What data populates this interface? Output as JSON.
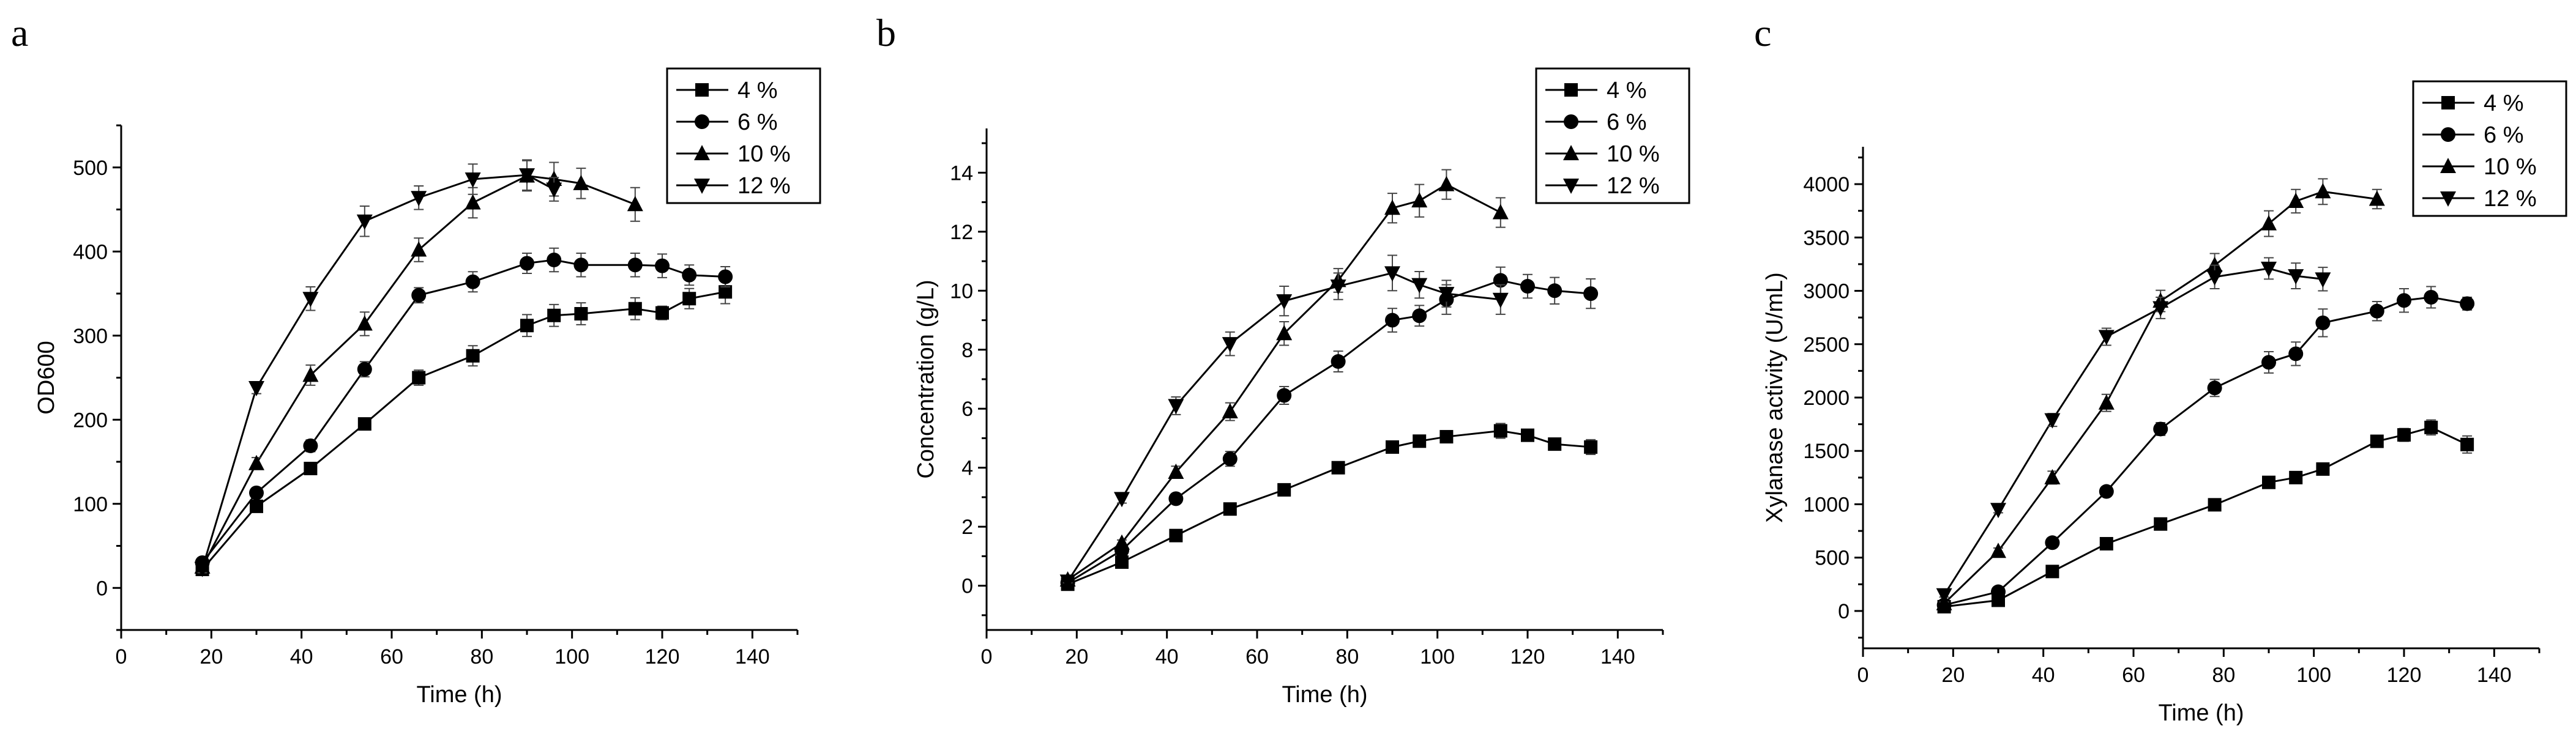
{
  "chart_data": [
    {
      "panel": "a",
      "type": "line",
      "xlabel": "Time (h)",
      "ylabel": "OD600",
      "xlim": [
        0,
        150
      ],
      "ylim": [
        -50,
        550
      ],
      "xticks": [
        0,
        20,
        40,
        60,
        80,
        100,
        120,
        140
      ],
      "yticks": [
        0,
        100,
        200,
        300,
        400,
        500
      ],
      "legend_position": "top-right",
      "series": [
        {
          "name": "4 %",
          "marker": "square",
          "x": [
            18,
            30,
            42,
            54,
            66,
            78,
            90,
            96,
            102,
            114,
            120,
            126,
            134
          ],
          "y": [
            22,
            97,
            142,
            195,
            250,
            276,
            312,
            324,
            326,
            332,
            327,
            344,
            352
          ],
          "err": [
            6,
            6,
            7,
            7,
            9,
            12,
            13,
            13,
            13,
            13,
            8,
            12,
            14
          ]
        },
        {
          "name": "6 %",
          "marker": "circle",
          "x": [
            18,
            30,
            42,
            54,
            66,
            78,
            90,
            96,
            102,
            114,
            120,
            126,
            134
          ],
          "y": [
            30,
            113,
            169,
            260,
            348,
            364,
            386,
            390,
            384,
            384,
            383,
            372,
            370
          ],
          "err": [
            6,
            6,
            7,
            9,
            9,
            12,
            12,
            14,
            14,
            14,
            14,
            12,
            12
          ]
        },
        {
          "name": "10 %",
          "marker": "triangle-up",
          "x": [
            18,
            30,
            42,
            54,
            66,
            78,
            90,
            96,
            102,
            114
          ],
          "y": [
            25,
            148,
            253,
            314,
            402,
            458,
            490,
            486,
            481,
            456
          ],
          "err": [
            5,
            7,
            12,
            14,
            14,
            18,
            18,
            20,
            18,
            20
          ]
        },
        {
          "name": "12 %",
          "marker": "triangle-down",
          "x": [
            18,
            30,
            42,
            54,
            66,
            78,
            90,
            96
          ],
          "y": [
            23,
            238,
            344,
            436,
            464,
            486,
            491,
            474
          ],
          "err": [
            5,
            7,
            14,
            18,
            14,
            18,
            18,
            14
          ]
        }
      ]
    },
    {
      "panel": "b",
      "type": "line",
      "xlabel": "Time (h)",
      "ylabel": "Concentration (g/L)",
      "xlim": [
        0,
        150
      ],
      "ylim": [
        -1.5,
        15.5
      ],
      "xticks": [
        0,
        20,
        40,
        60,
        80,
        100,
        120,
        140
      ],
      "yticks": [
        0,
        2,
        4,
        6,
        8,
        10,
        12,
        14
      ],
      "legend_position": "top-right",
      "series": [
        {
          "name": "4 %",
          "marker": "square",
          "x": [
            18,
            30,
            42,
            54,
            66,
            78,
            90,
            96,
            102,
            114,
            120,
            126,
            134
          ],
          "y": [
            0.05,
            0.8,
            1.7,
            2.6,
            3.25,
            4.0,
            4.7,
            4.9,
            5.05,
            5.25,
            5.1,
            4.8,
            4.7
          ],
          "err": [
            0.05,
            0.1,
            0.1,
            0.1,
            0.12,
            0.12,
            0.15,
            0.15,
            0.18,
            0.25,
            0.15,
            0.2,
            0.25
          ]
        },
        {
          "name": "6 %",
          "marker": "circle",
          "x": [
            18,
            30,
            42,
            54,
            66,
            78,
            90,
            96,
            102,
            114,
            120,
            126,
            134
          ],
          "y": [
            0.1,
            1.2,
            2.95,
            4.3,
            6.45,
            7.6,
            9.0,
            9.15,
            9.7,
            10.35,
            10.15,
            10.0,
            9.9
          ],
          "err": [
            0.05,
            0.12,
            0.15,
            0.25,
            0.3,
            0.35,
            0.4,
            0.35,
            0.5,
            0.45,
            0.4,
            0.45,
            0.5
          ]
        },
        {
          "name": "10 %",
          "marker": "triangle-up",
          "x": [
            18,
            30,
            42,
            54,
            66,
            78,
            90,
            96,
            102,
            114
          ],
          "y": [
            0.2,
            1.45,
            3.85,
            5.9,
            8.55,
            10.35,
            12.8,
            13.05,
            13.6,
            12.65
          ],
          "err": [
            0.05,
            0.1,
            0.2,
            0.3,
            0.4,
            0.4,
            0.5,
            0.55,
            0.5,
            0.5
          ]
        },
        {
          "name": "12 %",
          "marker": "triangle-down",
          "x": [
            18,
            30,
            42,
            54,
            66,
            78,
            90,
            96,
            102,
            114
          ],
          "y": [
            0.15,
            2.95,
            6.1,
            8.2,
            9.65,
            10.15,
            10.6,
            10.2,
            9.9,
            9.7
          ],
          "err": [
            0.05,
            0.15,
            0.3,
            0.4,
            0.5,
            0.45,
            0.6,
            0.45,
            0.45,
            0.5
          ]
        }
      ]
    },
    {
      "panel": "c",
      "type": "line",
      "xlabel": "Time (h)",
      "ylabel": "Xylanase activity (U/mL)",
      "xlim": [
        0,
        150
      ],
      "ylim": [
        -350,
        4350
      ],
      "xticks": [
        0,
        20,
        40,
        60,
        80,
        100,
        120,
        140
      ],
      "yticks": [
        0,
        500,
        1000,
        1500,
        2000,
        2500,
        3000,
        3500,
        4000
      ],
      "legend_position": "top-right",
      "series": [
        {
          "name": "4 %",
          "marker": "square",
          "x": [
            18,
            30,
            42,
            54,
            66,
            78,
            90,
            96,
            102,
            114,
            120,
            126,
            134
          ],
          "y": [
            40,
            100,
            370,
            630,
            815,
            995,
            1205,
            1250,
            1330,
            1590,
            1650,
            1720,
            1560
          ],
          "err": [
            10,
            15,
            20,
            25,
            30,
            35,
            40,
            40,
            45,
            50,
            60,
            70,
            80
          ]
        },
        {
          "name": "6 %",
          "marker": "circle",
          "x": [
            18,
            30,
            42,
            54,
            66,
            78,
            90,
            96,
            102,
            114,
            120,
            126,
            134
          ],
          "y": [
            55,
            180,
            640,
            1120,
            1705,
            2090,
            2330,
            2410,
            2700,
            2810,
            2910,
            2940,
            2880
          ],
          "err": [
            15,
            20,
            30,
            40,
            60,
            80,
            100,
            110,
            130,
            90,
            110,
            100,
            60
          ]
        },
        {
          "name": "10 %",
          "marker": "triangle-up",
          "x": [
            18,
            30,
            42,
            54,
            66,
            78,
            90,
            96,
            102,
            114
          ],
          "y": [
            70,
            560,
            1250,
            1950,
            2905,
            3240,
            3630,
            3840,
            3930,
            3860
          ],
          "err": [
            15,
            30,
            60,
            80,
            100,
            110,
            120,
            110,
            120,
            90
          ]
        },
        {
          "name": "12 %",
          "marker": "triangle-down",
          "x": [
            18,
            30,
            42,
            54,
            66,
            78,
            90,
            96,
            102
          ],
          "y": [
            150,
            950,
            1790,
            2570,
            2840,
            3130,
            3210,
            3140,
            3110
          ],
          "err": [
            20,
            30,
            60,
            80,
            100,
            110,
            100,
            120,
            110
          ]
        }
      ]
    }
  ]
}
